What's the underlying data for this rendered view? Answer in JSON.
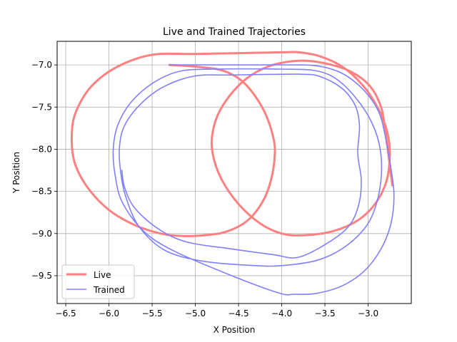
{
  "chart_data": {
    "type": "line",
    "title": "Live and Trained Trajectories",
    "xlabel": "X Position",
    "ylabel": "Y Position",
    "xlim": [
      -6.6,
      -2.5
    ],
    "ylim": [
      -9.83,
      -6.72
    ],
    "xticks": [
      -6.5,
      -6.0,
      -5.5,
      -5.0,
      -4.5,
      -4.0,
      -3.5,
      -3.0
    ],
    "xtick_labels": [
      "−6.5",
      "−6.0",
      "−5.5",
      "−5.0",
      "−4.5",
      "−4.0",
      "−3.5",
      "−3.0"
    ],
    "yticks": [
      -7.0,
      -7.5,
      -8.0,
      -8.5,
      -9.0,
      -9.5
    ],
    "ytick_labels": [
      "−7.0",
      "−7.5",
      "−8.0",
      "−8.5",
      "−9.0",
      "−9.5"
    ],
    "grid": true,
    "legend_position": "lower-left",
    "series": [
      {
        "name": "Live",
        "color": "#ff8080",
        "points": [
          [
            -5.3,
            -7.0
          ],
          [
            -5.0,
            -7.02
          ],
          [
            -4.75,
            -7.05
          ],
          [
            -4.6,
            -7.1
          ],
          [
            -4.45,
            -7.2
          ],
          [
            -4.3,
            -7.38
          ],
          [
            -4.18,
            -7.6
          ],
          [
            -4.1,
            -7.85
          ],
          [
            -4.08,
            -8.05
          ],
          [
            -4.12,
            -8.35
          ],
          [
            -4.22,
            -8.62
          ],
          [
            -4.4,
            -8.85
          ],
          [
            -4.65,
            -8.98
          ],
          [
            -4.9,
            -9.02
          ],
          [
            -5.15,
            -9.03
          ],
          [
            -5.4,
            -9.0
          ],
          [
            -5.7,
            -8.9
          ],
          [
            -6.0,
            -8.72
          ],
          [
            -6.25,
            -8.45
          ],
          [
            -6.4,
            -8.15
          ],
          [
            -6.43,
            -7.82
          ],
          [
            -6.38,
            -7.55
          ],
          [
            -6.2,
            -7.25
          ],
          [
            -5.9,
            -7.02
          ],
          [
            -5.5,
            -6.88
          ],
          [
            -5.0,
            -6.87
          ],
          [
            -4.5,
            -6.86
          ],
          [
            -4.0,
            -6.85
          ],
          [
            -3.8,
            -6.85
          ],
          [
            -3.55,
            -6.9
          ],
          [
            -3.3,
            -7.02
          ],
          [
            -3.08,
            -7.22
          ],
          [
            -2.92,
            -7.45
          ],
          [
            -2.8,
            -7.72
          ],
          [
            -2.75,
            -8.0
          ],
          [
            -2.78,
            -8.35
          ],
          [
            -2.9,
            -8.62
          ],
          [
            -3.1,
            -8.83
          ],
          [
            -3.4,
            -8.97
          ],
          [
            -3.75,
            -9.02
          ],
          [
            -4.0,
            -9.0
          ],
          [
            -4.25,
            -8.88
          ],
          [
            -4.5,
            -8.65
          ],
          [
            -4.7,
            -8.35
          ],
          [
            -4.8,
            -8.05
          ],
          [
            -4.8,
            -7.8
          ],
          [
            -4.72,
            -7.55
          ],
          [
            -4.55,
            -7.3
          ],
          [
            -4.35,
            -7.12
          ],
          [
            -4.1,
            -7.0
          ],
          [
            -3.8,
            -6.95
          ],
          [
            -3.5,
            -6.98
          ],
          [
            -3.2,
            -7.08
          ],
          [
            -2.98,
            -7.25
          ],
          [
            -2.85,
            -7.5
          ],
          [
            -2.8,
            -7.8
          ],
          [
            -2.76,
            -8.1
          ],
          [
            -2.72,
            -8.43
          ]
        ]
      },
      {
        "name": "Trained",
        "color": "#8080ff",
        "points": [
          [
            -5.3,
            -7.0
          ],
          [
            -4.8,
            -7.0
          ],
          [
            -4.0,
            -7.0
          ],
          [
            -3.6,
            -7.01
          ],
          [
            -3.3,
            -7.1
          ],
          [
            -3.05,
            -7.3
          ],
          [
            -2.88,
            -7.55
          ],
          [
            -2.8,
            -7.85
          ],
          [
            -2.74,
            -8.2
          ],
          [
            -2.7,
            -8.55
          ],
          [
            -2.74,
            -8.9
          ],
          [
            -2.86,
            -9.2
          ],
          [
            -3.05,
            -9.45
          ],
          [
            -3.3,
            -9.62
          ],
          [
            -3.6,
            -9.71
          ],
          [
            -3.85,
            -9.72
          ],
          [
            -4.05,
            -9.7
          ],
          [
            -4.7,
            -9.45
          ],
          [
            -5.3,
            -9.18
          ],
          [
            -5.62,
            -8.95
          ],
          [
            -5.85,
            -8.62
          ],
          [
            -5.93,
            -8.3
          ],
          [
            -5.95,
            -8.0
          ],
          [
            -5.9,
            -7.72
          ],
          [
            -5.75,
            -7.45
          ],
          [
            -5.5,
            -7.22
          ],
          [
            -5.2,
            -7.08
          ],
          [
            -4.8,
            -7.05
          ],
          [
            -4.0,
            -7.05
          ],
          [
            -3.6,
            -7.07
          ],
          [
            -3.35,
            -7.18
          ],
          [
            -3.12,
            -7.42
          ],
          [
            -2.95,
            -7.7
          ],
          [
            -2.86,
            -8.0
          ],
          [
            -2.85,
            -8.35
          ],
          [
            -2.92,
            -8.7
          ],
          [
            -3.05,
            -8.95
          ],
          [
            -3.3,
            -9.18
          ],
          [
            -3.6,
            -9.32
          ],
          [
            -4.0,
            -9.38
          ],
          [
            -4.3,
            -9.38
          ],
          [
            -4.9,
            -9.33
          ],
          [
            -5.35,
            -9.2
          ],
          [
            -5.65,
            -8.92
          ],
          [
            -5.8,
            -8.58
          ],
          [
            -5.86,
            -8.3
          ],
          [
            -5.88,
            -8.0
          ],
          [
            -5.82,
            -7.72
          ],
          [
            -5.62,
            -7.45
          ],
          [
            -5.35,
            -7.25
          ],
          [
            -5.0,
            -7.13
          ],
          [
            -4.6,
            -7.12
          ],
          [
            -3.8,
            -7.11
          ],
          [
            -3.55,
            -7.14
          ],
          [
            -3.3,
            -7.28
          ],
          [
            -3.15,
            -7.48
          ],
          [
            -3.1,
            -7.72
          ],
          [
            -3.12,
            -8.05
          ],
          [
            -3.08,
            -8.35
          ],
          [
            -3.1,
            -8.62
          ],
          [
            -3.2,
            -8.88
          ],
          [
            -3.42,
            -9.08
          ],
          [
            -3.8,
            -9.28
          ],
          [
            -4.1,
            -9.25
          ],
          [
            -4.6,
            -9.18
          ],
          [
            -5.1,
            -9.1
          ],
          [
            -5.42,
            -8.95
          ],
          [
            -5.7,
            -8.7
          ],
          [
            -5.82,
            -8.45
          ],
          [
            -5.85,
            -8.25
          ]
        ]
      }
    ]
  }
}
